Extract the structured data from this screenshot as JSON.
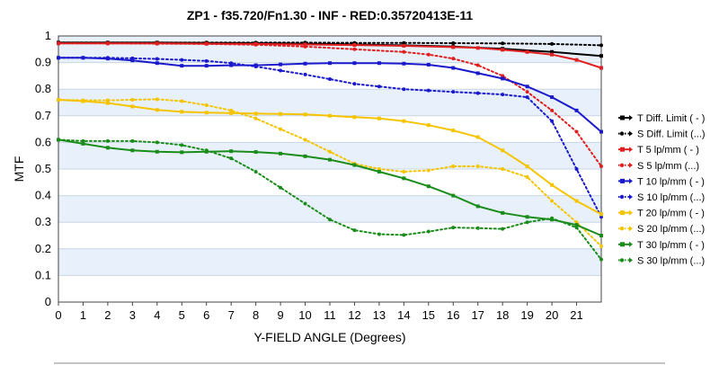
{
  "chart_data": {
    "type": "line",
    "title": "ZP1 - f35.720/Fn1.30 - INF - RED:0.35720413E-11",
    "xlabel": "Y-FIELD ANGLE (Degrees)",
    "ylabel": "MTF",
    "xlim": [
      0,
      22.0
    ],
    "ylim": [
      0,
      1
    ],
    "x_ticks": [
      "0",
      "1",
      "2",
      "3",
      "4",
      "5",
      "6",
      "7",
      "8",
      "9",
      "10",
      "11",
      "12",
      "13",
      "14",
      "15",
      "16",
      "17",
      "18",
      "19",
      "20",
      "21"
    ],
    "y_ticks": [
      "0",
      "0.1",
      "0.2",
      "0.3",
      "0.4",
      "0.5",
      "0.6",
      "0.7",
      "0.8",
      "0.9",
      "1"
    ],
    "grid": "horizontal alternating bands",
    "legend_position": "right",
    "series": [
      {
        "name": "T Diff. Limit ( - )",
        "color": "#000000",
        "style": "solid",
        "marker": "square",
        "x": [
          0,
          2,
          4,
          6,
          8,
          10,
          12,
          14,
          16,
          18,
          20,
          22
        ],
        "y": [
          0.975,
          0.975,
          0.975,
          0.974,
          0.973,
          0.971,
          0.968,
          0.965,
          0.96,
          0.952,
          0.94,
          0.925
        ]
      },
      {
        "name": "S Diff. Limit (...)",
        "color": "#000000",
        "style": "dotted",
        "marker": "dot",
        "x": [
          0,
          2,
          4,
          6,
          8,
          10,
          12,
          14,
          16,
          18,
          20,
          22
        ],
        "y": [
          0.975,
          0.975,
          0.975,
          0.975,
          0.975,
          0.975,
          0.974,
          0.974,
          0.973,
          0.972,
          0.97,
          0.965
        ]
      },
      {
        "name": "T 5 lp/mm ( - )",
        "color": "#e02020",
        "style": "solid",
        "marker": "square",
        "x": [
          0,
          2,
          4,
          6,
          8,
          10,
          12,
          14,
          16,
          17,
          18,
          19,
          20,
          21,
          22
        ],
        "y": [
          0.972,
          0.972,
          0.972,
          0.971,
          0.97,
          0.968,
          0.966,
          0.963,
          0.958,
          0.955,
          0.948,
          0.94,
          0.93,
          0.91,
          0.88
        ]
      },
      {
        "name": "S 5 lp/mm (...)",
        "color": "#e02020",
        "style": "dotted",
        "marker": "dot",
        "x": [
          0,
          2,
          4,
          6,
          8,
          10,
          12,
          14,
          15,
          16,
          17,
          18,
          19,
          20,
          21,
          22
        ],
        "y": [
          0.972,
          0.972,
          0.971,
          0.97,
          0.967,
          0.96,
          0.95,
          0.94,
          0.93,
          0.915,
          0.89,
          0.85,
          0.79,
          0.72,
          0.64,
          0.51
        ]
      },
      {
        "name": "T 10 lp/mm ( - )",
        "color": "#1a1acc",
        "style": "solid",
        "marker": "square",
        "x": [
          0,
          1,
          2,
          3,
          4,
          5,
          6,
          7,
          8,
          9,
          10,
          11,
          12,
          13,
          14,
          15,
          16,
          17,
          18,
          19,
          20,
          21,
          22
        ],
        "y": [
          0.918,
          0.918,
          0.915,
          0.908,
          0.898,
          0.888,
          0.888,
          0.89,
          0.89,
          0.893,
          0.896,
          0.898,
          0.898,
          0.898,
          0.896,
          0.892,
          0.88,
          0.86,
          0.84,
          0.81,
          0.77,
          0.72,
          0.64
        ]
      },
      {
        "name": "S 10 lp/mm (...)",
        "color": "#1a1acc",
        "style": "dotted",
        "marker": "dot",
        "x": [
          0,
          1,
          2,
          3,
          4,
          5,
          6,
          7,
          8,
          9,
          10,
          11,
          12,
          13,
          14,
          15,
          16,
          17,
          18,
          19,
          20,
          21,
          22
        ],
        "y": [
          0.918,
          0.918,
          0.918,
          0.916,
          0.914,
          0.91,
          0.906,
          0.898,
          0.885,
          0.87,
          0.855,
          0.838,
          0.82,
          0.81,
          0.8,
          0.795,
          0.79,
          0.785,
          0.78,
          0.77,
          0.68,
          0.5,
          0.32
        ]
      },
      {
        "name": "T 20 lp/mm ( - )",
        "color": "#f5c400",
        "style": "solid",
        "marker": "square",
        "x": [
          0,
          1,
          2,
          3,
          4,
          5,
          6,
          7,
          8,
          9,
          10,
          11,
          12,
          13,
          14,
          15,
          16,
          17,
          18,
          19,
          20,
          21,
          22
        ],
        "y": [
          0.76,
          0.755,
          0.748,
          0.735,
          0.722,
          0.715,
          0.712,
          0.71,
          0.708,
          0.707,
          0.705,
          0.7,
          0.695,
          0.69,
          0.68,
          0.665,
          0.645,
          0.62,
          0.57,
          0.51,
          0.44,
          0.38,
          0.33
        ]
      },
      {
        "name": "S 20 lp/mm (...)",
        "color": "#f5c400",
        "style": "dotted",
        "marker": "dot",
        "x": [
          0,
          1,
          2,
          3,
          4,
          5,
          6,
          7,
          8,
          9,
          10,
          11,
          12,
          13,
          14,
          15,
          16,
          17,
          18,
          19,
          20,
          21,
          22
        ],
        "y": [
          0.76,
          0.758,
          0.758,
          0.76,
          0.762,
          0.755,
          0.74,
          0.72,
          0.69,
          0.65,
          0.61,
          0.565,
          0.52,
          0.5,
          0.49,
          0.495,
          0.51,
          0.51,
          0.5,
          0.47,
          0.38,
          0.3,
          0.21
        ]
      },
      {
        "name": "T 30 lp/mm ( - )",
        "color": "#1a8c1a",
        "style": "solid",
        "marker": "square",
        "x": [
          0,
          1,
          2,
          3,
          4,
          5,
          6,
          7,
          8,
          9,
          10,
          11,
          12,
          13,
          14,
          15,
          16,
          17,
          18,
          19,
          20,
          21,
          22
        ],
        "y": [
          0.61,
          0.595,
          0.58,
          0.57,
          0.565,
          0.563,
          0.565,
          0.567,
          0.564,
          0.558,
          0.548,
          0.535,
          0.515,
          0.49,
          0.465,
          0.435,
          0.4,
          0.36,
          0.335,
          0.32,
          0.31,
          0.29,
          0.25
        ]
      },
      {
        "name": "S 30 lp/mm (...)",
        "color": "#1a8c1a",
        "style": "dotted",
        "marker": "dot",
        "x": [
          0,
          1,
          2,
          3,
          4,
          5,
          6,
          7,
          8,
          9,
          10,
          11,
          12,
          13,
          14,
          15,
          16,
          17,
          18,
          19,
          20,
          21,
          22
        ],
        "y": [
          0.61,
          0.605,
          0.605,
          0.605,
          0.6,
          0.59,
          0.57,
          0.54,
          0.49,
          0.43,
          0.37,
          0.31,
          0.27,
          0.255,
          0.252,
          0.265,
          0.28,
          0.278,
          0.275,
          0.3,
          0.315,
          0.28,
          0.16
        ]
      }
    ]
  }
}
